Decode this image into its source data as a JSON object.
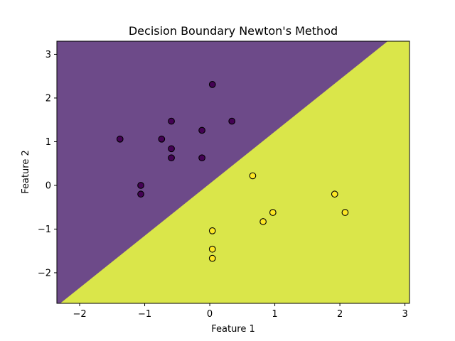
{
  "chart_data": {
    "type": "scatter",
    "title": "Decision Boundary Newton's Method",
    "xlabel": "Feature 1",
    "ylabel": "Feature 2",
    "xlim": [
      -2.35,
      3.07
    ],
    "ylim": [
      -2.7,
      3.3
    ],
    "xticks": [
      -2,
      -1,
      0,
      1,
      2,
      3
    ],
    "yticks": [
      -2,
      -1,
      0,
      1,
      2,
      3
    ],
    "grid": false,
    "boundary": {
      "points": [
        [
          -2.55,
          -3.0
        ],
        [
          3.07,
          3.7
        ]
      ],
      "class0_color": "#6d4a89",
      "class1_color": "#dae64a"
    },
    "series": [
      {
        "class": 0,
        "color": "#440154",
        "points": [
          [
            0.04,
            2.31
          ],
          [
            -0.59,
            1.47
          ],
          [
            0.34,
            1.47
          ],
          [
            -1.38,
            1.06
          ],
          [
            -0.74,
            1.06
          ],
          [
            -0.12,
            1.26
          ],
          [
            -0.59,
            0.84
          ],
          [
            -0.59,
            0.63
          ],
          [
            -0.12,
            0.63
          ],
          [
            -1.06,
            0.0
          ],
          [
            -1.06,
            -0.2
          ]
        ]
      },
      {
        "class": 1,
        "color": "#fde725",
        "points": [
          [
            0.66,
            0.22
          ],
          [
            1.92,
            -0.2
          ],
          [
            0.97,
            -0.62
          ],
          [
            2.08,
            -0.62
          ],
          [
            0.82,
            -0.83
          ],
          [
            0.04,
            -1.04
          ],
          [
            0.04,
            -1.46
          ],
          [
            0.04,
            -1.67
          ]
        ]
      }
    ]
  }
}
